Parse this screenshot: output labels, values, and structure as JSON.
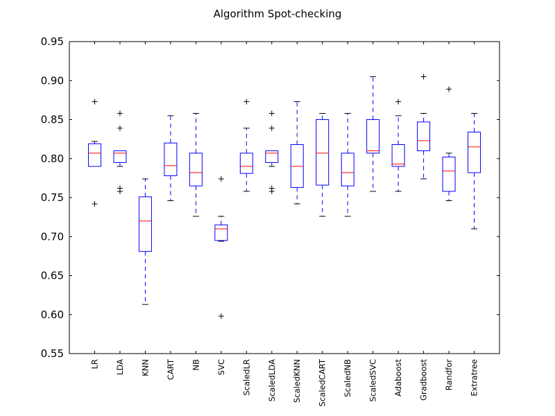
{
  "chart_data": {
    "type": "boxplot",
    "title": "Algorithm Spot-checking",
    "xlabel": "",
    "ylabel": "",
    "ylim": [
      0.55,
      0.95
    ],
    "yticks": [
      "0.55",
      "0.60",
      "0.65",
      "0.70",
      "0.75",
      "0.80",
      "0.85",
      "0.90",
      "0.95"
    ],
    "grid": false,
    "colors": {
      "box": "#0000ff",
      "median": "#ff0000",
      "flier": "#000000",
      "axes": "#000000"
    },
    "categories": [
      "LR",
      "LDA",
      "KNN",
      "CART",
      "NB",
      "SVC",
      "ScaledLR",
      "ScaledLDA",
      "ScaledKNN",
      "ScaledCART",
      "ScaledNB",
      "ScaledSVC",
      "Adaboost",
      "Gradboost",
      "Randfor",
      "Extratree"
    ],
    "boxes": [
      {
        "whisker_low": 0.79,
        "q1": 0.79,
        "median": 0.807,
        "q3": 0.819,
        "whisker_high": 0.822,
        "fliers": [
          0.742,
          0.873
        ]
      },
      {
        "whisker_low": 0.79,
        "q1": 0.795,
        "median": 0.807,
        "q3": 0.81,
        "whisker_high": 0.81,
        "fliers": [
          0.758,
          0.762,
          0.839,
          0.858
        ]
      },
      {
        "whisker_low": 0.613,
        "q1": 0.681,
        "median": 0.72,
        "q3": 0.751,
        "whisker_high": 0.774,
        "fliers": []
      },
      {
        "whisker_low": 0.746,
        "q1": 0.778,
        "median": 0.791,
        "q3": 0.82,
        "whisker_high": 0.855,
        "fliers": []
      },
      {
        "whisker_low": 0.726,
        "q1": 0.765,
        "median": 0.782,
        "q3": 0.807,
        "whisker_high": 0.858,
        "fliers": []
      },
      {
        "whisker_low": 0.694,
        "q1": 0.695,
        "median": 0.71,
        "q3": 0.715,
        "whisker_high": 0.726,
        "fliers": [
          0.598,
          0.774
        ]
      },
      {
        "whisker_low": 0.758,
        "q1": 0.781,
        "median": 0.79,
        "q3": 0.807,
        "whisker_high": 0.839,
        "fliers": [
          0.873
        ]
      },
      {
        "whisker_low": 0.79,
        "q1": 0.795,
        "median": 0.807,
        "q3": 0.81,
        "whisker_high": 0.81,
        "fliers": [
          0.758,
          0.762,
          0.839,
          0.858
        ]
      },
      {
        "whisker_low": 0.742,
        "q1": 0.763,
        "median": 0.79,
        "q3": 0.818,
        "whisker_high": 0.873,
        "fliers": []
      },
      {
        "whisker_low": 0.726,
        "q1": 0.766,
        "median": 0.807,
        "q3": 0.85,
        "whisker_high": 0.858,
        "fliers": []
      },
      {
        "whisker_low": 0.726,
        "q1": 0.765,
        "median": 0.782,
        "q3": 0.807,
        "whisker_high": 0.858,
        "fliers": []
      },
      {
        "whisker_low": 0.758,
        "q1": 0.807,
        "median": 0.81,
        "q3": 0.85,
        "whisker_high": 0.905,
        "fliers": []
      },
      {
        "whisker_low": 0.758,
        "q1": 0.79,
        "median": 0.793,
        "q3": 0.818,
        "whisker_high": 0.855,
        "fliers": [
          0.873
        ]
      },
      {
        "whisker_low": 0.774,
        "q1": 0.81,
        "median": 0.823,
        "q3": 0.847,
        "whisker_high": 0.858,
        "fliers": [
          0.905
        ]
      },
      {
        "whisker_low": 0.746,
        "q1": 0.758,
        "median": 0.784,
        "q3": 0.802,
        "whisker_high": 0.807,
        "fliers": [
          0.889
        ]
      },
      {
        "whisker_low": 0.71,
        "q1": 0.782,
        "median": 0.815,
        "q3": 0.834,
        "whisker_high": 0.858,
        "fliers": []
      }
    ]
  }
}
